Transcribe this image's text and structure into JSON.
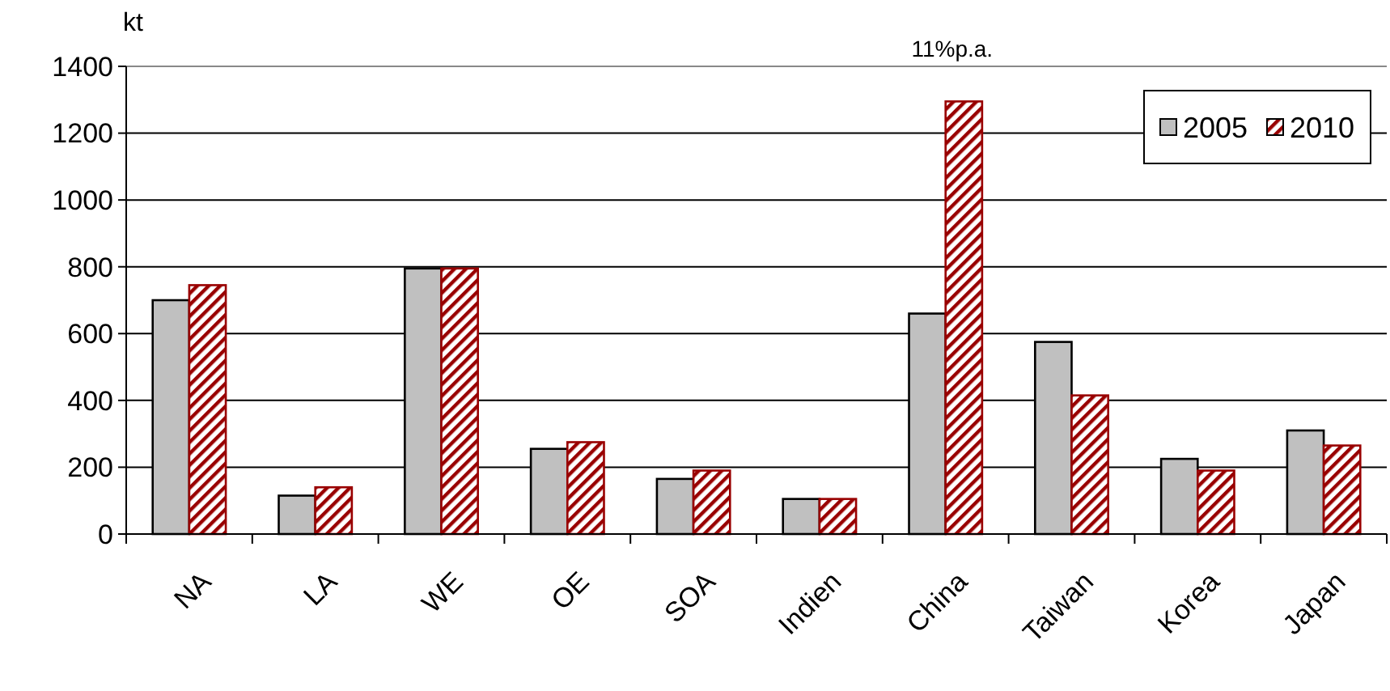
{
  "chart_data": {
    "type": "bar",
    "ylabel": "kt",
    "categories": [
      "NA",
      "LA",
      "WE",
      "OE",
      "SOA",
      "Indien",
      "China",
      "Taiwan",
      "Korea",
      "Japan"
    ],
    "series": [
      {
        "name": "2005",
        "color": "#c0c0c0",
        "values": [
          700,
          115,
          795,
          255,
          165,
          105,
          660,
          575,
          225,
          310
        ]
      },
      {
        "name": "2010",
        "color": "#990000",
        "values": [
          745,
          140,
          795,
          275,
          190,
          105,
          1295,
          415,
          190,
          265
        ]
      }
    ],
    "ylim": [
      0,
      1400
    ],
    "yticks": [
      0,
      200,
      400,
      600,
      800,
      1000,
      1200,
      1400
    ],
    "grid": "y",
    "legend": "top right",
    "annotations": [
      "11%p.a."
    ]
  }
}
